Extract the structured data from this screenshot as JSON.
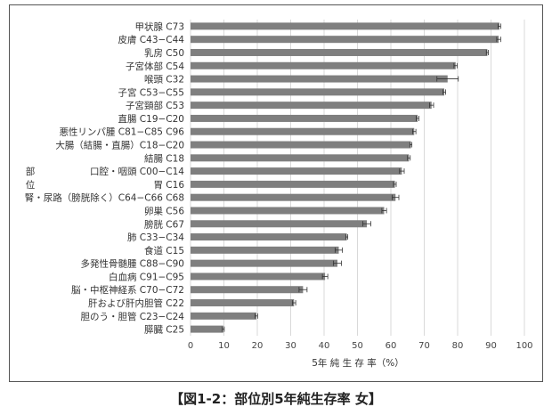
{
  "chart_data": {
    "type": "bar",
    "orientation": "horizontal",
    "title": "【図1-2：部位別5年純生存率 女】",
    "xlabel": "5年 純 生 存 率（%）",
    "ylabel": [
      "部",
      "位"
    ],
    "xlim": [
      0,
      100
    ],
    "xticks": [
      0,
      10,
      20,
      30,
      40,
      50,
      60,
      70,
      80,
      90,
      100
    ],
    "grid": "vertical",
    "legend": "none",
    "bar_color": "#7f7f7f",
    "categories": [
      "甲状腺 C73",
      "皮膚 C43−C44",
      "乳房 C50",
      "子宮体部 C54",
      "喉頭 C32",
      "子宮 C53−C55",
      "子宮頸部 C53",
      "直腸 C19−C20",
      "悪性リンパ腫 C81−C85 C96",
      "大腸（結腸・直腸）C18−C20",
      "結腸 C18",
      "口腔・咽頭 C00−C14",
      "胃 C16",
      "腎・尿路（膀胱除く）C64−C66 C68",
      "卵巣 C56",
      "膀胱 C67",
      "肺 C33−C34",
      "食道 C15",
      "多発性骨髄腫 C88−C90",
      "白血病 C91−C95",
      "脳・中枢神経系 C70−C72",
      "肝および肝内胆管 C22",
      "胆のう・胆管 C23−C24",
      "膵臓 C25"
    ],
    "values": [
      92.5,
      92.3,
      88.9,
      79.4,
      77.0,
      76.0,
      72.2,
      68.0,
      67.0,
      66.0,
      65.4,
      63.3,
      61.2,
      61.4,
      58.0,
      52.8,
      46.8,
      44.4,
      44.0,
      40.3,
      33.7,
      31.0,
      19.7,
      9.8
    ],
    "error": [
      0.4,
      0.6,
      0.3,
      0.5,
      3.2,
      0.4,
      0.6,
      0.4,
      0.5,
      0.3,
      0.4,
      0.7,
      0.4,
      1.0,
      0.7,
      1.2,
      0.3,
      1.1,
      1.2,
      0.8,
      1.2,
      0.5,
      0.4,
      0.3
    ]
  }
}
